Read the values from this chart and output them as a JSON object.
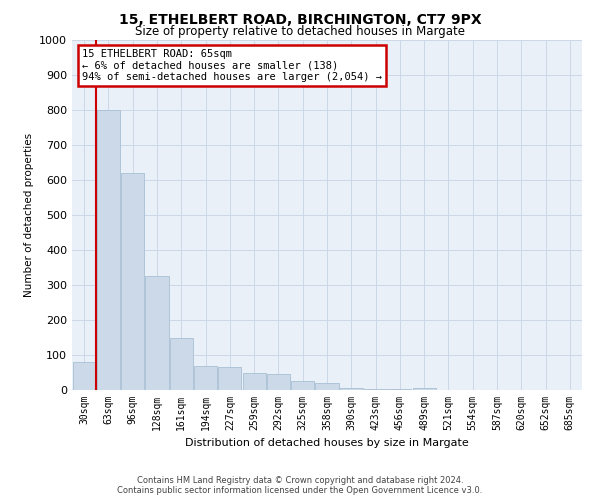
{
  "title_line1": "15, ETHELBERT ROAD, BIRCHINGTON, CT7 9PX",
  "title_line2": "Size of property relative to detached houses in Margate",
  "xlabel": "Distribution of detached houses by size in Margate",
  "ylabel": "Number of detached properties",
  "bar_labels": [
    "30sqm",
    "63sqm",
    "96sqm",
    "128sqm",
    "161sqm",
    "194sqm",
    "227sqm",
    "259sqm",
    "292sqm",
    "325sqm",
    "358sqm",
    "390sqm",
    "423sqm",
    "456sqm",
    "489sqm",
    "521sqm",
    "554sqm",
    "587sqm",
    "620sqm",
    "652sqm",
    "685sqm"
  ],
  "bar_values": [
    80,
    800,
    620,
    325,
    150,
    68,
    65,
    50,
    45,
    25,
    20,
    5,
    2,
    2,
    5,
    0,
    0,
    0,
    0,
    0,
    0
  ],
  "bar_color": "#ccd9e8",
  "bar_edgecolor": "#a8bfd4",
  "vline_color": "#cc0000",
  "vline_pos": 0.5,
  "ylim": [
    0,
    1000
  ],
  "yticks": [
    0,
    100,
    200,
    300,
    400,
    500,
    600,
    700,
    800,
    900,
    1000
  ],
  "annotation_title": "15 ETHELBERT ROAD: 65sqm",
  "annotation_line1": "← 6% of detached houses are smaller (138)",
  "annotation_line2": "94% of semi-detached houses are larger (2,054) →",
  "annotation_box_color": "#cc0000",
  "grid_color": "#ccd8e8",
  "bg_color": "#eaf0f8",
  "footer_line1": "Contains HM Land Registry data © Crown copyright and database right 2024.",
  "footer_line2": "Contains public sector information licensed under the Open Government Licence v3.0."
}
